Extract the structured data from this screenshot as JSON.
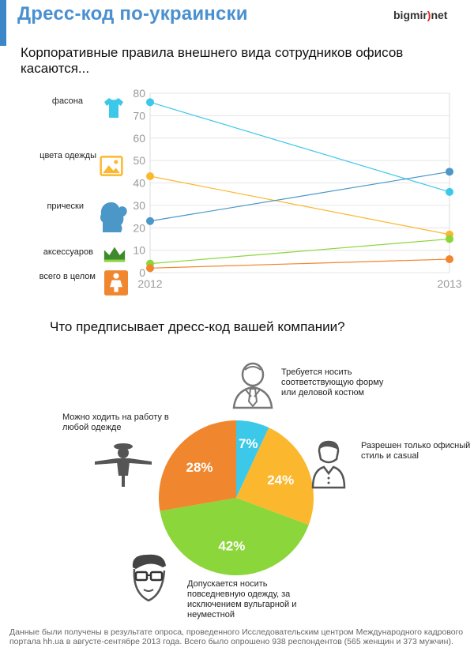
{
  "header": {
    "title": "Дресс-код по-украински",
    "logo_pre": "bigmir",
    "logo_paren": ")",
    "logo_post": "net"
  },
  "colors": {
    "accent": "#3a86c8",
    "title": "#4a90d0",
    "cyan": "#3cc8e8",
    "orange": "#f0862e",
    "yellow": "#fbb82e",
    "green": "#8bd63a",
    "blue": "#4a97c8",
    "dark_green": "#3f8a2e"
  },
  "sections": {
    "line_title": "Корпоративные правила внешнего вида сотрудников офисов касаются...",
    "pie_title": "Что предписывает дресс-код вашей компании?"
  },
  "legend_rows": [
    {
      "label": "фасона",
      "icon": "tshirt-icon"
    },
    {
      "label": "цвета одежды",
      "icon": "picture-icon"
    },
    {
      "label": "прически",
      "icon": "hairstyle-head-icon"
    },
    {
      "label": "аксессуаров",
      "icon": "crown-icon"
    },
    {
      "label": "всего в целом",
      "icon": "person-icon"
    }
  ],
  "chart_data": [
    {
      "type": "line",
      "x": [
        "2012",
        "2013"
      ],
      "ylim": [
        0,
        80
      ],
      "yticks": [
        0,
        10,
        20,
        30,
        40,
        50,
        60,
        70,
        80
      ],
      "grid": true,
      "series": [
        {
          "name": "фасона",
          "values": [
            76,
            36
          ],
          "color": "#3cc8e8"
        },
        {
          "name": "цвета одежды",
          "values": [
            43,
            17
          ],
          "color": "#fbb82e"
        },
        {
          "name": "прически",
          "values": [
            23,
            45
          ],
          "color": "#4a97c8"
        },
        {
          "name": "аксессуаров",
          "values": [
            4,
            15
          ],
          "color": "#8bd63a"
        },
        {
          "name": "всего в целом",
          "values": [
            2,
            6
          ],
          "color": "#f0862e"
        }
      ]
    },
    {
      "type": "pie",
      "slices": [
        {
          "label": "7%",
          "value": 7,
          "color": "#3cc8e8",
          "note": "Требуется носить соответствующую форму или деловой костюм",
          "icon": "businessman-icon"
        },
        {
          "label": "24%",
          "value": 24,
          "color": "#fbb82e",
          "note": "Разрешен только офисный стиль и casual",
          "icon": "casual-man-icon"
        },
        {
          "label": "42%",
          "value": 42,
          "color": "#8bd63a",
          "note": "Допускается носить повседневную одежду, за исключением вульгарной и неуместной",
          "icon": "nerd-face-icon"
        },
        {
          "label": "28%",
          "value": 28,
          "color": "#f0862e",
          "note": "Можно ходить на работу в любой одежде",
          "icon": "scarecrow-icon"
        }
      ]
    }
  ],
  "footer": {
    "note": "Данные были получены в результате опроса, проведенного Исследовательским центром Международного кадрового портала hh.ua в августе-сентябре 2013 года. Всего было опрошено 938 респондентов (565 женщин и 373 мужчин)."
  }
}
